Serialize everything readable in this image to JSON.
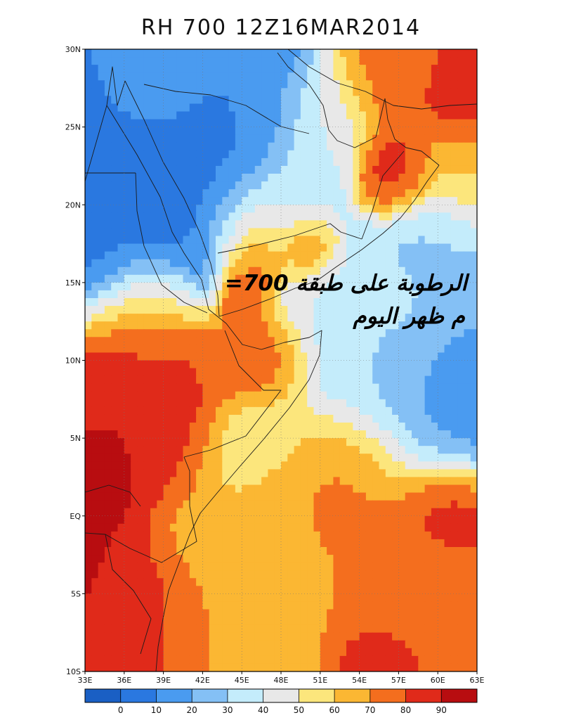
{
  "title": "RH 700 12Z16MAR2014",
  "chart_data": {
    "type": "heatmap",
    "title": "RH 700 12Z16MAR2014",
    "variable": "RH",
    "level": "700",
    "valid_time": "12Z16MAR2014",
    "lon_range": [
      33,
      63
    ],
    "lat_range": [
      -10,
      30
    ],
    "lat_ticks": [
      {
        "value": 30,
        "label": "30N"
      },
      {
        "value": 25,
        "label": "25N"
      },
      {
        "value": 20,
        "label": "20N"
      },
      {
        "value": 15,
        "label": "15N"
      },
      {
        "value": 10,
        "label": "10N"
      },
      {
        "value": 5,
        "label": "5N"
      },
      {
        "value": 0,
        "label": "EQ"
      },
      {
        "value": -5,
        "label": "5S"
      },
      {
        "value": -10,
        "label": "10S"
      }
    ],
    "lon_ticks": [
      {
        "value": 33,
        "label": "33E"
      },
      {
        "value": 36,
        "label": "36E"
      },
      {
        "value": 39,
        "label": "39E"
      },
      {
        "value": 42,
        "label": "42E"
      },
      {
        "value": 45,
        "label": "45E"
      },
      {
        "value": 48,
        "label": "48E"
      },
      {
        "value": 51,
        "label": "51E"
      },
      {
        "value": 54,
        "label": "54E"
      },
      {
        "value": 57,
        "label": "57E"
      },
      {
        "value": 60,
        "label": "60E"
      },
      {
        "value": 63,
        "label": "63E"
      }
    ],
    "grid": true,
    "colorbar": {
      "bins": [
        {
          "color": "#1a5fc4"
        },
        {
          "color": "#2a78e0"
        },
        {
          "color": "#4a9bf0"
        },
        {
          "color": "#84c0f5"
        },
        {
          "color": "#c4ecfb"
        },
        {
          "color": "#e8e8e8"
        },
        {
          "color": "#fce67c"
        },
        {
          "color": "#fbb733"
        },
        {
          "color": "#f46e1e"
        },
        {
          "color": "#e02a1a"
        },
        {
          "color": "#b80d10"
        }
      ],
      "labels": [
        "0",
        "10",
        "20",
        "30",
        "40",
        "50",
        "60",
        "70",
        "80",
        "90"
      ]
    },
    "fields": [
      {
        "lon": 34,
        "lat": 26,
        "rh": 8,
        "sigma": 3.5
      },
      {
        "lon": 37,
        "lat": 19,
        "rh": 6,
        "sigma": 4
      },
      {
        "lon": 42,
        "lat": 24,
        "rh": 8,
        "sigma": 4
      },
      {
        "lon": 46,
        "lat": 28,
        "rh": 12,
        "sigma": 3
      },
      {
        "lon": 38,
        "lat": 29,
        "rh": 25,
        "sigma": 2
      },
      {
        "lon": 51,
        "lat": 26,
        "rh": 45,
        "sigma": 2
      },
      {
        "lon": 56,
        "lat": 29,
        "rh": 75,
        "sigma": 2.5
      },
      {
        "lon": 62,
        "lat": 27,
        "rh": 85,
        "sigma": 2
      },
      {
        "lon": 62,
        "lat": 22,
        "rh": 62,
        "sigma": 2
      },
      {
        "lon": 57,
        "lat": 22,
        "rh": 85,
        "sigma": 1.5
      },
      {
        "lon": 60,
        "lat": 17,
        "rh": 28,
        "sigma": 2.5
      },
      {
        "lon": 57,
        "lat": 13,
        "rh": 32,
        "sigma": 2.5
      },
      {
        "lon": 61,
        "lat": 8,
        "rh": 12,
        "sigma": 2.5
      },
      {
        "lon": 58,
        "lat": 7,
        "rh": 22,
        "sigma": 3
      },
      {
        "lon": 53,
        "lat": 10,
        "rh": 32,
        "sigma": 3
      },
      {
        "lon": 51,
        "lat": 14,
        "rh": 40,
        "sigma": 2
      },
      {
        "lon": 49,
        "lat": 21,
        "rh": 40,
        "sigma": 2
      },
      {
        "lon": 46,
        "lat": 18,
        "rh": 60,
        "sigma": 2
      },
      {
        "lon": 46,
        "lat": 16,
        "rh": 85,
        "sigma": 1.2
      },
      {
        "lon": 50,
        "lat": 17,
        "rh": 78,
        "sigma": 1.2
      },
      {
        "lon": 45,
        "lat": 14,
        "rh": 88,
        "sigma": 1
      },
      {
        "lon": 38,
        "lat": 13,
        "rh": 72,
        "sigma": 2
      },
      {
        "lon": 36,
        "lat": 9,
        "rh": 90,
        "sigma": 2.5
      },
      {
        "lon": 40,
        "lat": 9,
        "rh": 85,
        "sigma": 2
      },
      {
        "lon": 47,
        "lat": 10,
        "rh": 82,
        "sigma": 2
      },
      {
        "lon": 43,
        "lat": 10,
        "rh": 75,
        "sigma": 1.5
      },
      {
        "lon": 40,
        "lat": 4,
        "rh": 85,
        "sigma": 2
      },
      {
        "lon": 35,
        "lat": 2,
        "rh": 92,
        "sigma": 2
      },
      {
        "lon": 35,
        "lat": -5,
        "rh": 92,
        "sigma": 2.5
      },
      {
        "lon": 38,
        "lat": -6,
        "rh": 82,
        "sigma": 2.5
      },
      {
        "lon": 35,
        "lat": -9,
        "rh": 85,
        "sigma": 2
      },
      {
        "lon": 44,
        "lat": 3,
        "rh": 55,
        "sigma": 2
      },
      {
        "lon": 47,
        "lat": 5,
        "rh": 50,
        "sigma": 2
      },
      {
        "lon": 42,
        "lat": -2,
        "rh": 65,
        "sigma": 2.5
      },
      {
        "lon": 46,
        "lat": -2,
        "rh": 68,
        "sigma": 2.5
      },
      {
        "lon": 50,
        "lat": 2,
        "rh": 70,
        "sigma": 2.5
      },
      {
        "lon": 54,
        "lat": 3,
        "rh": 75,
        "sigma": 2.5
      },
      {
        "lon": 60,
        "lat": 0,
        "rh": 88,
        "sigma": 2
      },
      {
        "lon": 58,
        "lat": -4,
        "rh": 72,
        "sigma": 3
      },
      {
        "lon": 52,
        "lat": -4,
        "rh": 70,
        "sigma": 3
      },
      {
        "lon": 55,
        "lat": -9,
        "rh": 88,
        "sigma": 2
      },
      {
        "lon": 47,
        "lat": -7,
        "rh": 60,
        "sigma": 2.5
      },
      {
        "lon": 43,
        "lat": -8,
        "rh": 70,
        "sigma": 2.5
      }
    ]
  },
  "annotation": {
    "line1": "=الرطوبة على طبقة 700",
    "line2": "م ظهر اليوم"
  }
}
